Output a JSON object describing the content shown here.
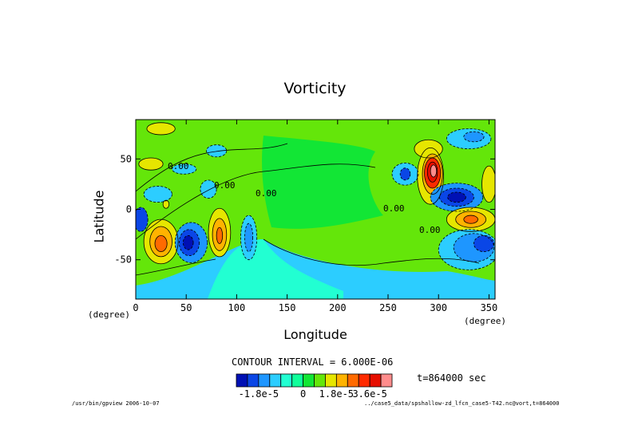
{
  "chart_data": {
    "type": "contour",
    "title": "Vorticity",
    "xlabel": "Longitude",
    "ylabel": "Latitude",
    "x_unit": "(degree)",
    "y_unit": "(degree)",
    "xlim": [
      0,
      356
    ],
    "ylim": [
      -89,
      89
    ],
    "x_ticks": [
      0,
      50,
      100,
      150,
      200,
      250,
      300,
      350
    ],
    "y_ticks": [
      -50,
      0,
      50
    ],
    "contour_interval_text": "CONTOUR INTERVAL = 6.000E-06",
    "contour_labels": [
      "0.00",
      "0.00",
      "0.00",
      "0.00",
      "0.00"
    ],
    "colorbar": {
      "colors": [
        "#0010b4",
        "#0a46e6",
        "#1e96ff",
        "#2ccdff",
        "#22ffd2",
        "#0fff9a",
        "#12e635",
        "#64e60a",
        "#e6e600",
        "#ffb300",
        "#ff6a00",
        "#ff2a00",
        "#e60e00",
        "#ff8c8c"
      ],
      "tick_labels": [
        "-1.8e-5",
        "0",
        "1.8e-5",
        "3.6e-5"
      ]
    },
    "regions": [
      {
        "level": 0,
        "color": "#e6e600",
        "cx": 15,
        "cy": 45,
        "rx": 12,
        "ry": 6
      },
      {
        "level": -1,
        "color": "#2ccdff",
        "cx": 48,
        "cy": 40,
        "rx": 12,
        "ry": 5
      },
      {
        "level": -1,
        "color": "#2ccdff",
        "cx": 80,
        "cy": 58,
        "rx": 10,
        "ry": 6
      },
      {
        "level": -1,
        "color": "#2ccdff",
        "cx": 22,
        "cy": 15,
        "rx": 14,
        "ry": 8
      },
      {
        "level": -1,
        "color": "#2ccdff",
        "cx": 72,
        "cy": 20,
        "rx": 8,
        "ry": 9
      },
      {
        "level": -3,
        "color": "#0a46e6",
        "cx": 5,
        "cy": -10,
        "rx": 7,
        "ry": 12
      },
      {
        "level": 1,
        "color": "#e6e600",
        "cx": 25,
        "cy": -32,
        "rx": 17,
        "ry": 22
      },
      {
        "level": 2,
        "color": "#ffb300",
        "cx": 25,
        "cy": -32,
        "rx": 11,
        "ry": 15
      },
      {
        "level": 3,
        "color": "#ff6a00",
        "cx": 25,
        "cy": -34,
        "rx": 6,
        "ry": 8
      },
      {
        "level": -2,
        "color": "#1e96ff",
        "cx": 55,
        "cy": -33,
        "rx": 16,
        "ry": 20
      },
      {
        "level": -3,
        "color": "#0a46e6",
        "cx": 53,
        "cy": -33,
        "rx": 10,
        "ry": 13
      },
      {
        "level": -4,
        "color": "#0010b4",
        "cx": 52,
        "cy": -33,
        "rx": 5,
        "ry": 7
      },
      {
        "level": 1,
        "color": "#e6e600",
        "cx": 83,
        "cy": -23,
        "rx": 11,
        "ry": 24
      },
      {
        "level": 2,
        "color": "#ffb300",
        "cx": 83,
        "cy": -25,
        "rx": 7,
        "ry": 16
      },
      {
        "level": 3,
        "color": "#ff6a00",
        "cx": 83,
        "cy": -26,
        "rx": 3,
        "ry": 8
      },
      {
        "level": -1,
        "color": "#2ccdff",
        "cx": 112,
        "cy": -28,
        "rx": 8,
        "ry": 22
      },
      {
        "level": -2,
        "color": "#1e96ff",
        "cx": 112,
        "cy": -28,
        "rx": 4,
        "ry": 14
      },
      {
        "level": 0,
        "color": "#e6e600",
        "cx": 25,
        "cy": 80,
        "rx": 14,
        "ry": 6
      },
      {
        "level": 0,
        "color": "#e6e600",
        "cx": 290,
        "cy": 60,
        "rx": 14,
        "ry": 9
      },
      {
        "level": -1,
        "color": "#2ccdff",
        "cx": 330,
        "cy": 70,
        "rx": 22,
        "ry": 10
      },
      {
        "level": -2,
        "color": "#1e96ff",
        "cx": 335,
        "cy": 72,
        "rx": 10,
        "ry": 5
      },
      {
        "level": -1,
        "color": "#2ccdff",
        "cx": 267,
        "cy": 35,
        "rx": 13,
        "ry": 11
      },
      {
        "level": -3,
        "color": "#0a46e6",
        "cx": 267,
        "cy": 35,
        "rx": 5,
        "ry": 6
      },
      {
        "level": 1,
        "color": "#e6e600",
        "cx": 292,
        "cy": 33,
        "rx": 13,
        "ry": 28
      },
      {
        "level": 2,
        "color": "#ffb300",
        "cx": 294,
        "cy": 35,
        "rx": 10,
        "ry": 20
      },
      {
        "level": 3,
        "color": "#ff2a00",
        "cx": 294,
        "cy": 36,
        "rx": 8,
        "ry": 15
      },
      {
        "level": 4,
        "color": "#e60e00",
        "cx": 294,
        "cy": 37,
        "rx": 5,
        "ry": 10
      },
      {
        "level": 5,
        "color": "#ff8c8c",
        "cx": 295,
        "cy": 38,
        "rx": 3,
        "ry": 6
      },
      {
        "level": -2,
        "color": "#1e96ff",
        "cx": 318,
        "cy": 12,
        "rx": 26,
        "ry": 14
      },
      {
        "level": -3,
        "color": "#0a46e6",
        "cx": 318,
        "cy": 12,
        "rx": 17,
        "ry": 9
      },
      {
        "level": -4,
        "color": "#0010b4",
        "cx": 318,
        "cy": 12,
        "rx": 9,
        "ry": 5
      },
      {
        "level": 1,
        "color": "#e6e600",
        "cx": 332,
        "cy": -10,
        "rx": 24,
        "ry": 12
      },
      {
        "level": 2,
        "color": "#ffb300",
        "cx": 332,
        "cy": -10,
        "rx": 15,
        "ry": 8
      },
      {
        "level": 3,
        "color": "#ff6a00",
        "cx": 332,
        "cy": -10,
        "rx": 7,
        "ry": 4
      },
      {
        "level": -1,
        "color": "#2ccdff",
        "cx": 330,
        "cy": -40,
        "rx": 30,
        "ry": 20
      },
      {
        "level": -2,
        "color": "#1e96ff",
        "cx": 335,
        "cy": -38,
        "rx": 20,
        "ry": 14
      },
      {
        "level": -3,
        "color": "#0a46e6",
        "cx": 345,
        "cy": -34,
        "rx": 10,
        "ry": 8
      },
      {
        "level": 1,
        "color": "#e6e600",
        "cx": 350,
        "cy": 25,
        "rx": 7,
        "ry": 18
      },
      {
        "level": 0,
        "color": "#e6e600",
        "cx": 30,
        "cy": 5,
        "rx": 3,
        "ry": 4
      }
    ]
  },
  "time_label": "t=864000 sec",
  "footer_left": "/usr/bin/gpview  2006-10-07",
  "footer_right": "../case5_data/spshallow-zd_lfcn_case5-T42.nc@vort,t=864000"
}
